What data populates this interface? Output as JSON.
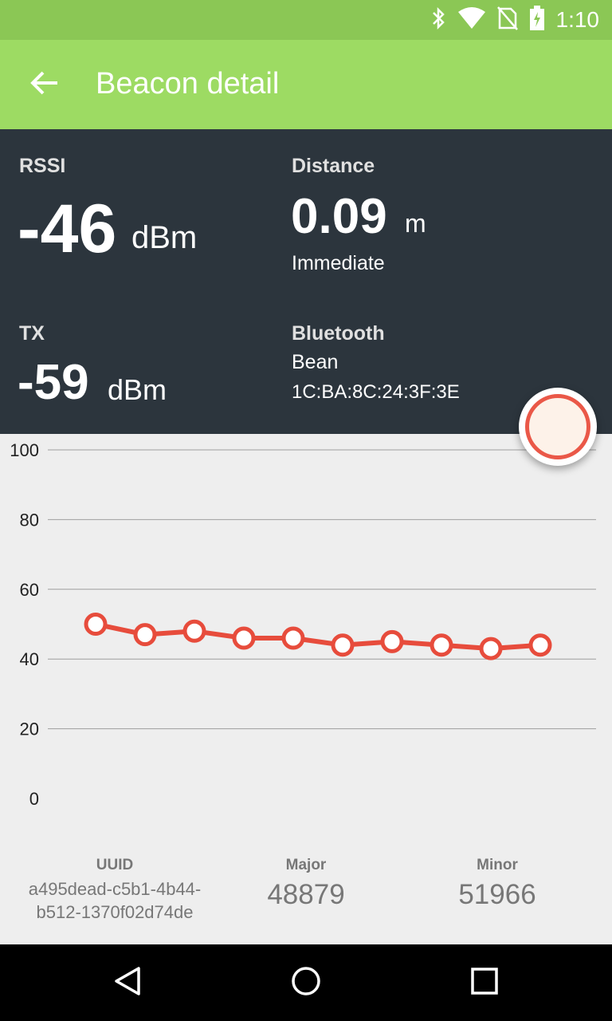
{
  "status_bar": {
    "time": "1:10",
    "icons": [
      "bluetooth-icon",
      "wifi-icon",
      "no-sim-icon",
      "battery-charging-icon"
    ]
  },
  "app_bar": {
    "back_icon": "arrow-back-icon",
    "title": "Beacon detail"
  },
  "rssi": {
    "label": "RSSI",
    "value": "-46",
    "unit": "dBm"
  },
  "distance": {
    "label": "Distance",
    "value": "0.09",
    "unit": "m",
    "proximity": "Immediate"
  },
  "tx": {
    "label": "TX",
    "value": "-59",
    "unit": "dBm"
  },
  "bluetooth": {
    "label": "Bluetooth",
    "name": "Bean",
    "address": "1C:BA:8C:24:3F:3E"
  },
  "fab": {
    "icon": "record-circle-icon",
    "accent": "#ea5848"
  },
  "chart_data": {
    "type": "line",
    "y_ticks": [
      "100",
      "80",
      "60",
      "40",
      "20",
      "0"
    ],
    "ylim": [
      0,
      100
    ],
    "x": [
      1,
      2,
      3,
      4,
      5,
      6,
      7,
      8,
      9,
      10
    ],
    "series": [
      {
        "values": [
          50,
          47,
          48,
          46,
          46,
          44,
          45,
          44,
          43,
          44
        ],
        "color": "#e74c3c"
      }
    ],
    "grid": true
  },
  "beacon": {
    "uuid_label": "UUID",
    "uuid_line1": "a495dead-c5b1-4b44-",
    "uuid_line2": "b512-1370f02d74de",
    "major_label": "Major",
    "major_value": "48879",
    "minor_label": "Minor",
    "minor_value": "51966"
  },
  "nav_bar": {
    "back_icon": "nav-back-icon",
    "home_icon": "nav-home-icon",
    "recents_icon": "nav-recents-icon"
  },
  "colors": {
    "status_bar": "#8bc755",
    "app_bar": "#9ddb63",
    "stats_panel": "#2c353d",
    "line": "#e74c3c"
  }
}
